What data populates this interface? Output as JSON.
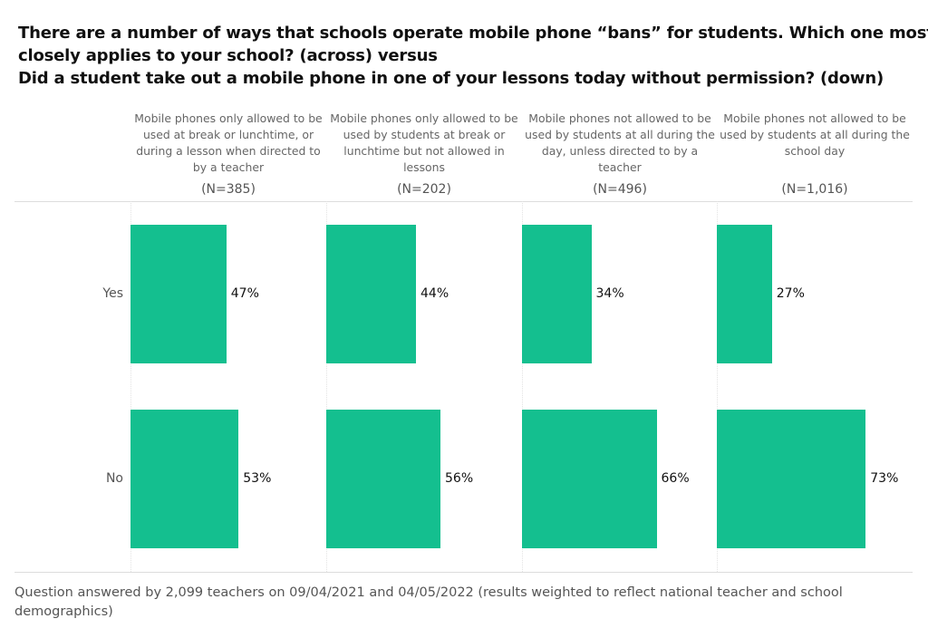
{
  "chart_data": {
    "type": "bar",
    "orientation": "horizontal",
    "title_lines": [
      "There are a number of ways that schools operate mobile phone “bans” for students. Which one most",
      "closely applies to your school? (across) versus",
      "Did a student take out a mobile phone in one of your lessons today without permission? (down)"
    ],
    "columns": [
      {
        "label": "Mobile phones only allowed to be used at break or lunchtime, or during a lesson when directed to by a teacher",
        "n": "(N=385)"
      },
      {
        "label": "Mobile phones only allowed to be used by students at break or lunchtime but not allowed in lessons",
        "n": "(N=202)"
      },
      {
        "label": "Mobile phones not allowed to be used by students at all during the day, unless directed to by a teacher",
        "n": "(N=496)"
      },
      {
        "label": "Mobile phones not allowed to be used by students at all during the school day",
        "n": "(N=1,016)"
      }
    ],
    "categories": [
      "Yes",
      "No"
    ],
    "series": [
      {
        "values": [
          47,
          53
        ]
      },
      {
        "values": [
          44,
          56
        ]
      },
      {
        "values": [
          34,
          66
        ]
      },
      {
        "values": [
          27,
          73
        ]
      }
    ],
    "value_suffix": "%",
    "xlim": [
      0,
      100
    ],
    "bar_color": "#14BF8F",
    "grid": false,
    "footnote": "Question answered by 2,099 teachers on 09/04/2021 and 04/05/2022 (results weighted to reflect national teacher and school demographics)"
  }
}
